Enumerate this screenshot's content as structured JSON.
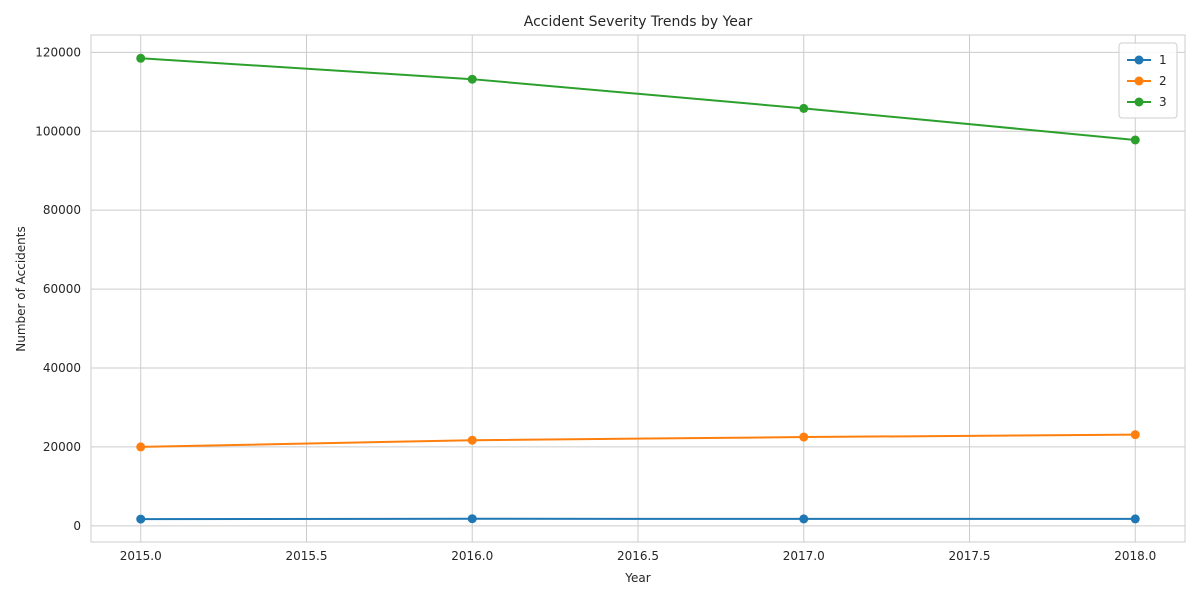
{
  "chart_data": {
    "type": "line",
    "title": "Accident Severity Trends by Year",
    "xlabel": "Year",
    "ylabel": "Number of Accidents",
    "x": [
      2015,
      2016,
      2017,
      2018
    ],
    "xlim": [
      2014.85,
      2018.15
    ],
    "ylim": [
      -4100,
      124400
    ],
    "xticks": [
      2015.0,
      2015.5,
      2016.0,
      2016.5,
      2017.0,
      2017.5,
      2018.0
    ],
    "xtick_labels": [
      "2015.0",
      "2015.5",
      "2016.0",
      "2016.5",
      "2017.0",
      "2017.5",
      "2018.0"
    ],
    "yticks": [
      0,
      20000,
      40000,
      60000,
      80000,
      100000,
      120000
    ],
    "ytick_labels": [
      "0",
      "20000",
      "40000",
      "60000",
      "80000",
      "100000",
      "120000"
    ],
    "grid": true,
    "legend_position": "top-right",
    "series": [
      {
        "name": "1",
        "color": "#1f77b4",
        "values": [
          1700,
          1800,
          1750,
          1750
        ]
      },
      {
        "name": "2",
        "color": "#ff7f0e",
        "values": [
          20000,
          21700,
          22500,
          23100
        ]
      },
      {
        "name": "3",
        "color": "#2ca02c",
        "values": [
          118500,
          113200,
          105800,
          97800
        ]
      }
    ]
  }
}
